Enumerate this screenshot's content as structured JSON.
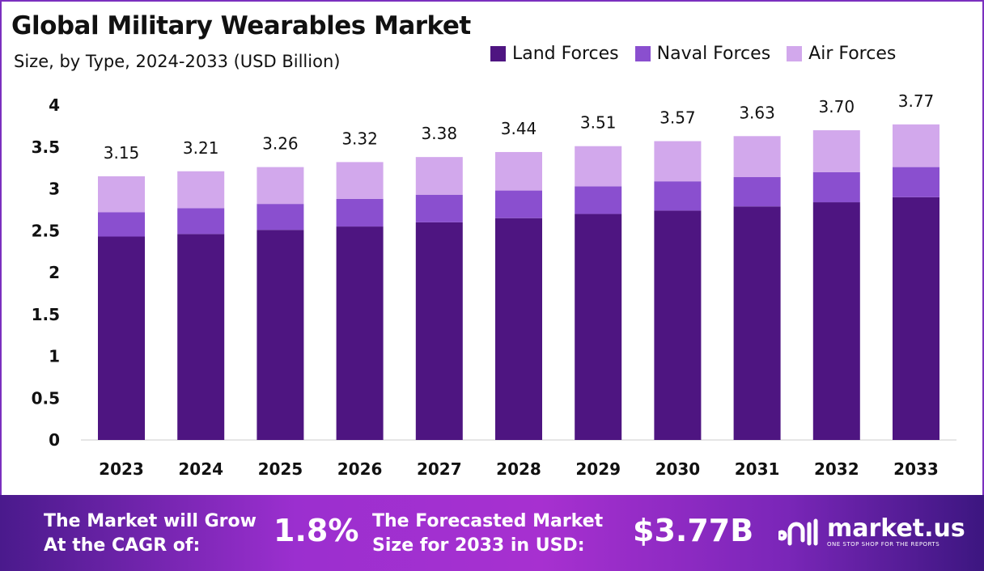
{
  "chart_data": {
    "type": "bar",
    "stacked": true,
    "title": "Global Military Wearables Market",
    "subtitle": "Size, by Type, 2024-2033 (USD Billion)",
    "categories": [
      "2023",
      "2024",
      "2025",
      "2026",
      "2027",
      "2028",
      "2029",
      "2030",
      "2031",
      "2032",
      "2033"
    ],
    "series": [
      {
        "name": "Land Forces",
        "color": "#4e1581",
        "values": [
          2.43,
          2.46,
          2.51,
          2.55,
          2.6,
          2.65,
          2.7,
          2.74,
          2.79,
          2.84,
          2.9
        ]
      },
      {
        "name": "Naval Forces",
        "color": "#8a4fcf",
        "values": [
          0.29,
          0.31,
          0.31,
          0.33,
          0.33,
          0.33,
          0.33,
          0.35,
          0.35,
          0.36,
          0.36
        ]
      },
      {
        "name": "Air Forces",
        "color": "#d2a8ec",
        "values": [
          0.43,
          0.44,
          0.44,
          0.44,
          0.45,
          0.46,
          0.48,
          0.48,
          0.49,
          0.5,
          0.51
        ]
      }
    ],
    "totals": [
      "3.15",
      "3.21",
      "3.26",
      "3.32",
      "3.38",
      "3.44",
      "3.51",
      "3.57",
      "3.63",
      "3.70",
      "3.77"
    ],
    "ylim": [
      0,
      4
    ],
    "yticks": [
      "0",
      "0.5",
      "1",
      "1.5",
      "2",
      "2.5",
      "3",
      "3.5",
      "4"
    ],
    "grid": false,
    "legend_position": "top-right"
  },
  "footer": {
    "cagr_label_1": "The Market will Grow",
    "cagr_label_2": "At the CAGR of:",
    "cagr_value": "1.8%",
    "forecast_label_1": "The Forecasted Market",
    "forecast_label_2": "Size for 2033 in USD:",
    "forecast_value": "$3.77B",
    "logo_name": "market.us",
    "logo_tagline": "ONE STOP SHOP FOR THE REPORTS"
  }
}
